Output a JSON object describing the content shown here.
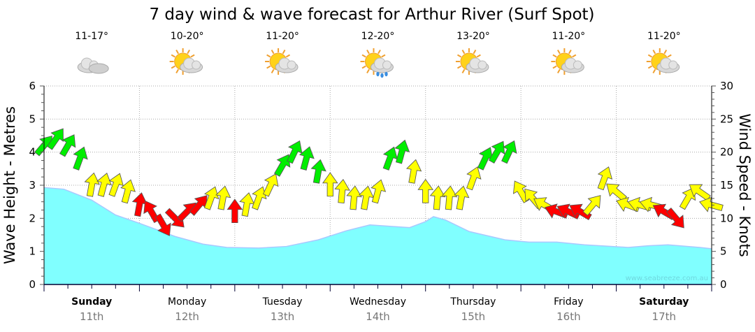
{
  "chart_data": {
    "type": "area+arrows",
    "title": "7 day wind & wave forecast for Arthur River (Surf Spot)",
    "ylabel_left": "Wave Height - Metres",
    "ylabel_right": "Wind Speed - Knots",
    "ylim_left": [
      0,
      6
    ],
    "ylim_right": [
      0,
      30
    ],
    "yticks_left": [
      "0",
      "1",
      "2",
      "3",
      "4",
      "5",
      "6"
    ],
    "yticks_right": [
      "0",
      "5",
      "10",
      "15",
      "20",
      "25",
      "30"
    ],
    "grid": true,
    "watermark": "www.seabreeze.com.au",
    "days": [
      {
        "name": "Sunday",
        "date": "11th",
        "temp": "11-17°",
        "icon": "cloud-icon",
        "bold": true
      },
      {
        "name": "Monday",
        "date": "12th",
        "temp": "10-20°",
        "icon": "sun-cloud-icon",
        "bold": false
      },
      {
        "name": "Tuesday",
        "date": "13th",
        "temp": "11-20°",
        "icon": "sun-cloud-icon",
        "bold": false
      },
      {
        "name": "Wednesday",
        "date": "14th",
        "temp": "12-20°",
        "icon": "sun-cloud-rain-icon",
        "bold": false
      },
      {
        "name": "Thursday",
        "date": "15th",
        "temp": "13-20°",
        "icon": "sun-cloud-icon",
        "bold": false
      },
      {
        "name": "Friday",
        "date": "16th",
        "temp": "11-20°",
        "icon": "sun-cloud-icon",
        "bold": false
      },
      {
        "name": "Saturday",
        "date": "17th",
        "temp": "11-20°",
        "icon": "sun-cloud-icon",
        "bold": true
      }
    ],
    "wave": {
      "name": "Wave Height (m)",
      "color": "#80ffff",
      "hours": [
        0,
        5,
        12,
        18,
        24,
        33,
        40,
        46,
        54,
        61,
        69,
        76,
        82,
        88,
        92,
        96,
        98,
        101,
        107,
        116,
        122,
        129,
        136,
        143,
        147,
        152,
        157,
        165,
        168
      ],
      "values": [
        2.93,
        2.88,
        2.55,
        2.1,
        1.85,
        1.45,
        1.22,
        1.12,
        1.1,
        1.15,
        1.35,
        1.62,
        1.8,
        1.75,
        1.72,
        1.9,
        2.05,
        1.95,
        1.6,
        1.35,
        1.28,
        1.28,
        1.2,
        1.15,
        1.12,
        1.17,
        1.2,
        1.12,
        1.08
      ]
    },
    "wind": {
      "name": "Wind Speed (knots)",
      "colors": {
        "G": "#00ee00",
        "Y": "#ffff00",
        "R": "#ff0000"
      },
      "hours": [
        0,
        3,
        6,
        9,
        12,
        15,
        18,
        21,
        24,
        27,
        30,
        33,
        36,
        39,
        42,
        45,
        48,
        51,
        54,
        57,
        60,
        63,
        66,
        69,
        72,
        75,
        78,
        81,
        84,
        87,
        90,
        93,
        96,
        99,
        102,
        105,
        108,
        111,
        114,
        117,
        120,
        123,
        126,
        129,
        132,
        135,
        138,
        141,
        144,
        147,
        150,
        153,
        156,
        159,
        162,
        165,
        168
      ],
      "speed": [
        21,
        22,
        21,
        19,
        15,
        15,
        15,
        14,
        12,
        11,
        9,
        10,
        11,
        12,
        13,
        13,
        11,
        12,
        13,
        15,
        18,
        20,
        19,
        17,
        15,
        14,
        13,
        13,
        14,
        19,
        20,
        17,
        14,
        13,
        13,
        13,
        16,
        19,
        20,
        20,
        14,
        13,
        12,
        11,
        11,
        11,
        12,
        16,
        14,
        12,
        12,
        12,
        11,
        10,
        13,
        14,
        12
      ],
      "direction": [
        40,
        35,
        30,
        20,
        10,
        15,
        20,
        15,
        10,
        -30,
        150,
        135,
        45,
        40,
        20,
        10,
        0,
        10,
        20,
        25,
        30,
        25,
        15,
        10,
        0,
        5,
        5,
        10,
        15,
        20,
        15,
        10,
        0,
        5,
        5,
        10,
        20,
        25,
        30,
        25,
        -30,
        -40,
        -60,
        -70,
        -65,
        -60,
        40,
        20,
        -50,
        -70,
        -75,
        -75,
        -60,
        140,
        30,
        -55,
        -75
      ],
      "category": [
        "G",
        "G",
        "G",
        "G",
        "Y",
        "Y",
        "Y",
        "Y",
        "R",
        "R",
        "R",
        "R",
        "R",
        "R",
        "Y",
        "Y",
        "R",
        "Y",
        "Y",
        "Y",
        "G",
        "G",
        "G",
        "G",
        "Y",
        "Y",
        "Y",
        "Y",
        "Y",
        "G",
        "G",
        "Y",
        "Y",
        "Y",
        "Y",
        "Y",
        "Y",
        "G",
        "G",
        "G",
        "Y",
        "Y",
        "Y",
        "R",
        "R",
        "R",
        "Y",
        "Y",
        "Y",
        "Y",
        "Y",
        "Y",
        "R",
        "R",
        "Y",
        "Y",
        "Y"
      ]
    }
  }
}
